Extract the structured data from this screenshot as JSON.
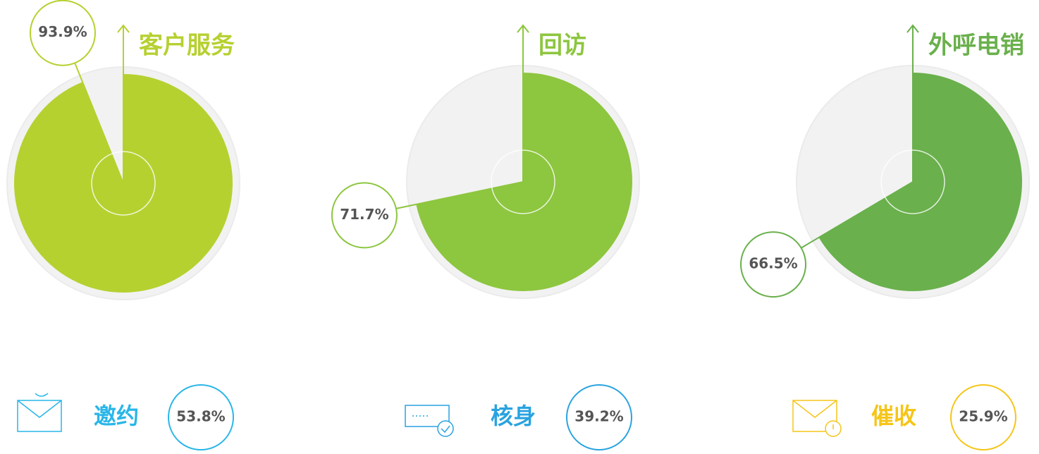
{
  "chart_data": [
    {
      "type": "pie",
      "title": "客户服务",
      "values": [
        93.9
      ],
      "value_labels": [
        "93.9%"
      ],
      "color": "#b5d130"
    },
    {
      "type": "pie",
      "title": "回访",
      "values": [
        71.7
      ],
      "value_labels": [
        "71.7%"
      ],
      "color": "#8dc63f"
    },
    {
      "type": "pie",
      "title": "外呼电销",
      "values": [
        66.5
      ],
      "value_labels": [
        "66.5%"
      ],
      "color": "#6ab04c"
    }
  ],
  "stats": [
    {
      "label": "邀约",
      "value": "53.8%",
      "color": "#29b6e8"
    },
    {
      "label": "核身",
      "value": "39.2%",
      "color": "#29a3e0"
    },
    {
      "label": "催收",
      "value": "25.9%",
      "color": "#f5c518"
    }
  ]
}
